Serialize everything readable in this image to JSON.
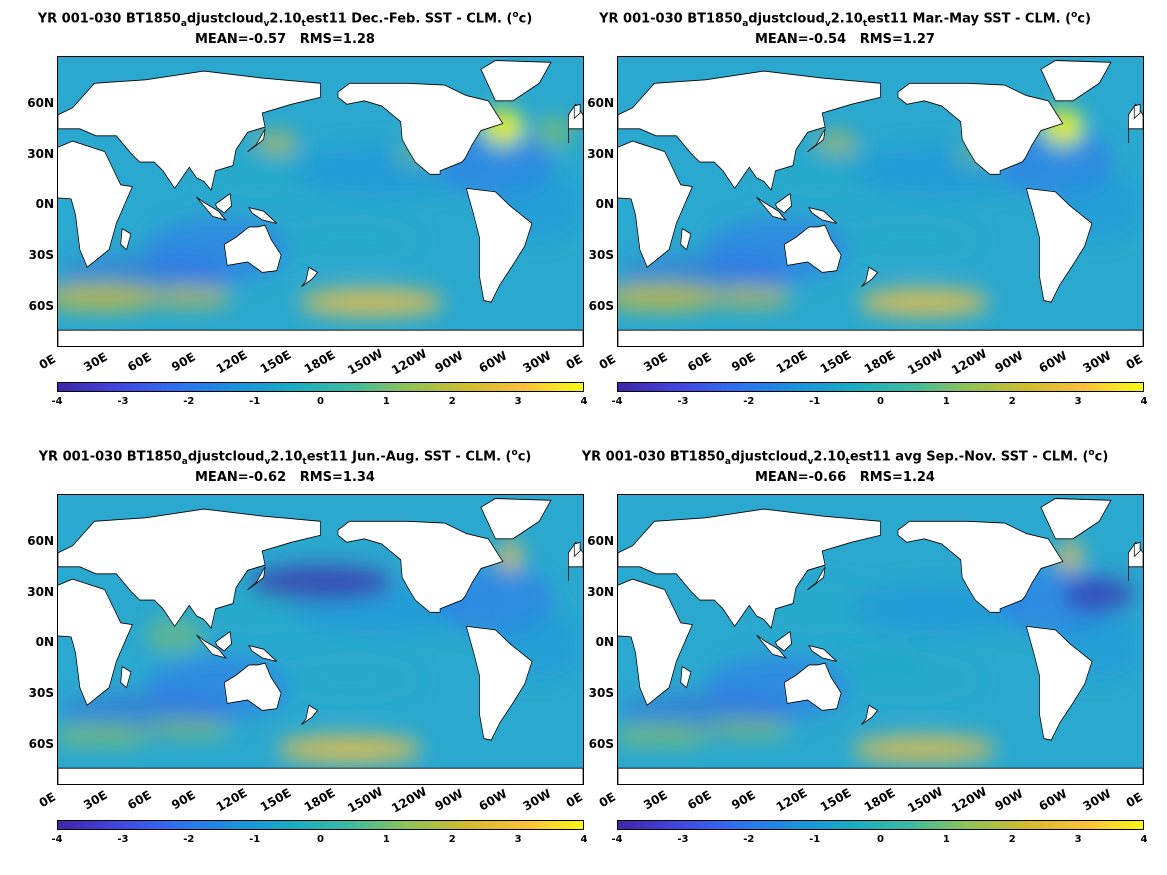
{
  "panels": [
    {
      "title_prefix": "YR 001-030 BT1850",
      "sub1": "a",
      "mid1": "djustcloud",
      "sub2": "v",
      "mid2": "2.10",
      "sub3": "t",
      "mid3": "est11  Dec.-Feb. SST - CLM. (",
      "sup": "o",
      "tail": "c)",
      "stats": "MEAN=-0.57   RMS=1.28"
    },
    {
      "title_prefix": "YR 001-030 BT1850",
      "sub1": "a",
      "mid1": "djustcloud",
      "sub2": "v",
      "mid2": "2.10",
      "sub3": "t",
      "mid3": "est11 Mar.-May SST - CLM. (",
      "sup": "o",
      "tail": "c)",
      "stats": "MEAN=-0.54   RMS=1.27"
    },
    {
      "title_prefix": "YR 001-030 BT1850",
      "sub1": "a",
      "mid1": "djustcloud",
      "sub2": "v",
      "mid2": "2.10",
      "sub3": "t",
      "mid3": "est11 Jun.-Aug. SST - CLM. (",
      "sup": "o",
      "tail": "c)",
      "stats": "MEAN=-0.62   RMS=1.34"
    },
    {
      "title_prefix": "YR 001-030 BT1850",
      "sub1": "a",
      "mid1": "djustcloud",
      "sub2": "v",
      "mid2": "2.10",
      "sub3": "t",
      "mid3": "est11 avg Sep.-Nov. SST - CLM. (",
      "sup": "o",
      "tail": "c)",
      "stats": "MEAN=-0.66   RMS=1.24"
    }
  ],
  "lat_labels": [
    "60N",
    "30N",
    "0N",
    "30S",
    "60S"
  ],
  "lon_labels": [
    "0E",
    "30E",
    "60E",
    "90E",
    "120E",
    "150E",
    "180E",
    "150W",
    "120W",
    "90W",
    "60W",
    "30W",
    "0E"
  ],
  "colorbar_ticks": [
    "-4",
    "-3",
    "-2",
    "-1",
    "0",
    "1",
    "2",
    "3",
    "4"
  ],
  "colors": {
    "ocean_base": "#2ba8cf",
    "cold": "#3b4fc4",
    "very_cold": "#3a2a9a",
    "warm": "#9ecf4a",
    "hot": "#f2c431",
    "land": "#ffffff"
  }
}
